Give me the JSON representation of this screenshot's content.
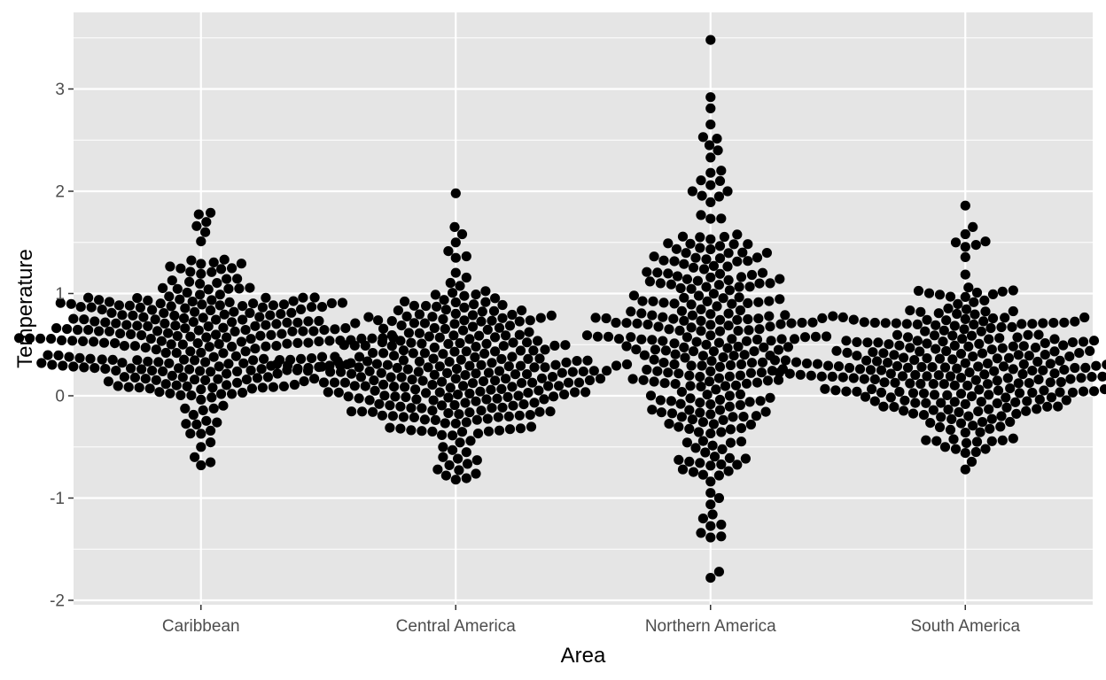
{
  "chart_data": {
    "type": "scatter",
    "subtype": "beeswarm",
    "title": "",
    "xlabel": "Area",
    "ylabel": "Temperature",
    "categories": [
      "Caribbean",
      "Central America",
      "Northern America",
      "South America"
    ],
    "y_ticks": [
      -2,
      -1,
      0,
      1,
      2,
      3
    ],
    "y_tick_labels": [
      "-2",
      "-1",
      "0",
      "1",
      "2",
      "3"
    ],
    "ylim": [
      -2.0,
      3.6
    ],
    "grid": true,
    "legend": "none",
    "point_color": "#000000",
    "panel_background": "#e5e5e5",
    "grid_color": "#ffffff",
    "series": [
      {
        "category": "Caribbean",
        "count": 300,
        "min": -0.68,
        "max": 1.79,
        "center": 0.55,
        "spread": 0.38,
        "extremes": [
          -0.68,
          -0.65,
          -0.6,
          -0.5,
          1.6,
          1.66,
          1.7,
          1.79
        ]
      },
      {
        "category": "Central America",
        "count": 300,
        "min": -0.82,
        "max": 1.98,
        "center": 0.28,
        "spread": 0.42,
        "extremes": [
          -0.82,
          -0.78,
          -0.72,
          -0.6,
          1.5,
          1.58,
          1.65,
          1.98
        ]
      },
      {
        "category": "Northern America",
        "count": 300,
        "min": -1.78,
        "max": 3.48,
        "center": 0.55,
        "spread": 0.75,
        "extremes": [
          -1.78,
          -1.72,
          -1.26,
          -1.2,
          -1.16,
          -1.0,
          -0.95,
          2.0,
          2.06,
          2.1,
          2.18,
          2.33,
          2.4,
          2.45,
          2.53,
          2.81,
          2.92,
          3.48
        ]
      },
      {
        "category": "South America",
        "count": 300,
        "min": -0.72,
        "max": 1.86,
        "center": 0.3,
        "spread": 0.4,
        "extremes": [
          -0.72,
          -0.55,
          -0.5,
          -0.45,
          1.5,
          1.58,
          1.65,
          1.86
        ]
      }
    ]
  }
}
